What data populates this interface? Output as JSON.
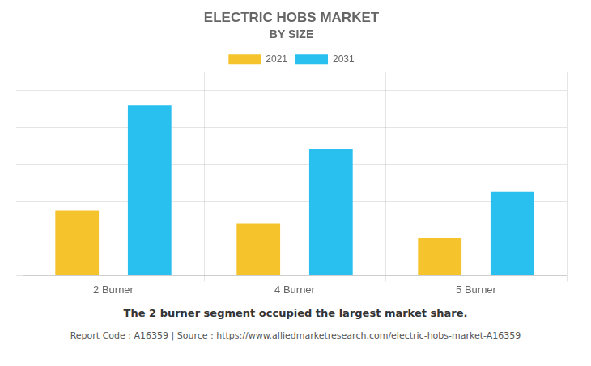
{
  "chart_data": {
    "type": "bar",
    "title": "ELECTRIC HOBS MARKET",
    "subtitle": "BY SIZE",
    "categories": [
      "2 Burner",
      "4 Burner",
      "5 Burner"
    ],
    "series": [
      {
        "name": "2021",
        "color": "#F5C42C",
        "values": [
          3.5,
          2.8,
          2.0
        ]
      },
      {
        "name": "2031",
        "color": "#29BFEF",
        "values": [
          9.2,
          6.8,
          4.5
        ]
      }
    ],
    "ylim": [
      0,
      11
    ],
    "yticks": [
      0,
      2,
      4,
      6,
      8,
      10
    ],
    "grid": true,
    "legend": "top",
    "tick_labels": "x",
    "annotations": [
      "The 2 burner segment occupied the largest market share.",
      "Report Code : A16359  |  Source : https://www.alliedmarketresearch.com/electric-hobs-market-A16359"
    ]
  }
}
